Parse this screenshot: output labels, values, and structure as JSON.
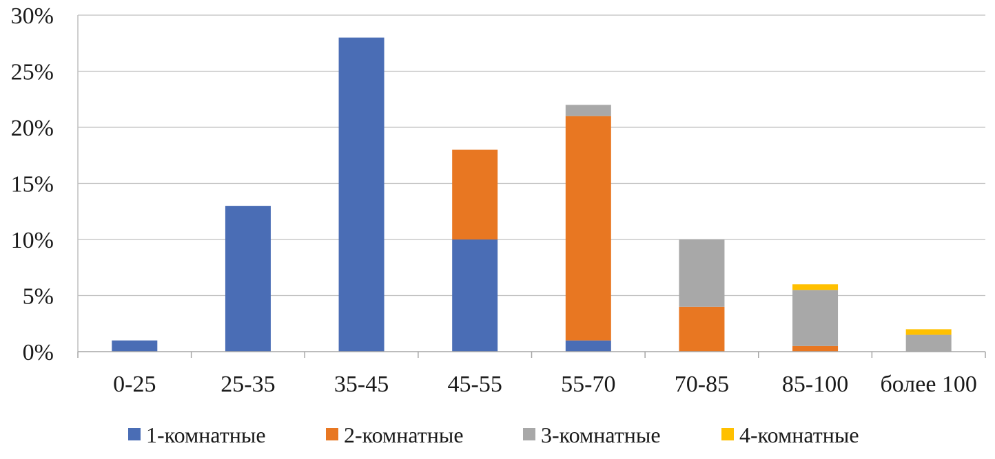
{
  "chart_data": {
    "type": "bar",
    "stacked": true,
    "categories": [
      "0-25",
      "25-35",
      "35-45",
      "45-55",
      "55-70",
      "70-85",
      "85-100",
      "более 100"
    ],
    "series": [
      {
        "name": "1-комнатные",
        "color": "#4a6db5",
        "values": [
          1,
          13,
          28,
          10,
          1,
          0,
          0,
          0
        ]
      },
      {
        "name": "2-комнатные",
        "color": "#e87722",
        "values": [
          0,
          0,
          0,
          8,
          20,
          4,
          0.5,
          0
        ]
      },
      {
        "name": "3-комнатные",
        "color": "#a8a8a8",
        "values": [
          0,
          0,
          0,
          0,
          1,
          6,
          5,
          1.5
        ]
      },
      {
        "name": "4-комнатные",
        "color": "#ffc000",
        "values": [
          0,
          0,
          0,
          0,
          0,
          0,
          0.5,
          0.5
        ]
      }
    ],
    "ylim": [
      0,
      30
    ],
    "yticks": [
      "0%",
      "5%",
      "10%",
      "15%",
      "20%",
      "25%",
      "30%"
    ],
    "grid": true,
    "legend_position": "bottom",
    "title": "",
    "xlabel": "",
    "ylabel": ""
  }
}
